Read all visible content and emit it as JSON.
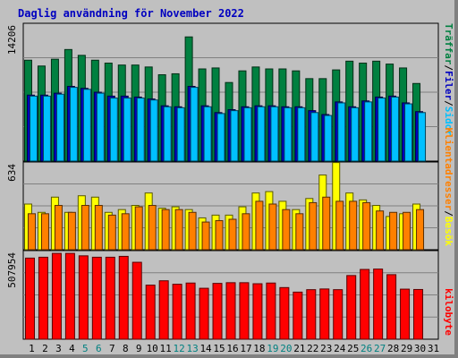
{
  "title": "Daglig användning för November 2022",
  "chart_data": [
    {
      "type": "bar",
      "panel": "top",
      "ymax_label": "14206",
      "ylim": [
        0,
        14206
      ],
      "legend": [
        {
          "text": "Träffar",
          "color": "#008040"
        },
        {
          "text": "/",
          "color": "#000000"
        },
        {
          "text": "Filer",
          "color": "#0000c0"
        },
        {
          "text": "/",
          "color": "#000000"
        },
        {
          "text": "Sidor",
          "color": "#00c0ff"
        }
      ],
      "series": [
        {
          "name": "Träffar",
          "color": "#008040",
          "values": [
            10400,
            9800,
            10500,
            11500,
            10900,
            10400,
            10100,
            9900,
            9900,
            9700,
            8900,
            9000,
            12800,
            9500,
            9600,
            8100,
            9300,
            9700,
            9500,
            9500,
            9300,
            8500,
            8500,
            9400,
            10300,
            10100,
            10300,
            10000,
            9600,
            8000
          ]
        },
        {
          "name": "Filer",
          "color": "#0000c0",
          "values": [
            6800,
            6800,
            7000,
            7700,
            7500,
            7100,
            6700,
            6700,
            6600,
            6400,
            5700,
            5600,
            7700,
            5700,
            5000,
            5300,
            5600,
            5700,
            5700,
            5600,
            5600,
            5200,
            4800,
            6100,
            5600,
            6200,
            6600,
            6700,
            6000,
            5100
          ]
        },
        {
          "name": "Sidor",
          "color": "#00c0ff",
          "values": [
            6700,
            6700,
            6900,
            7600,
            7400,
            7000,
            6500,
            6500,
            6500,
            6300,
            5600,
            5500,
            7600,
            5600,
            4900,
            5200,
            5500,
            5600,
            5600,
            5500,
            5500,
            5000,
            4700,
            6000,
            5500,
            6100,
            6500,
            6600,
            5900,
            5000
          ]
        }
      ]
    },
    {
      "type": "bar",
      "panel": "middle",
      "ymax_label": "634",
      "ylim": [
        0,
        634
      ],
      "legend": [
        {
          "text": "Klientadresser",
          "color": "#ff8000"
        },
        {
          "text": "/",
          "color": "#000000"
        },
        {
          "text": "Besök",
          "color": "#ffff00"
        }
      ],
      "series": [
        {
          "name": "Besök",
          "color": "#ffff00",
          "values": [
            330,
            270,
            380,
            270,
            390,
            380,
            270,
            290,
            320,
            410,
            300,
            310,
            290,
            230,
            250,
            250,
            310,
            410,
            420,
            350,
            290,
            370,
            540,
            630,
            410,
            360,
            320,
            240,
            260,
            330
          ]
        },
        {
          "name": "Klientadresser",
          "color": "#ff8000",
          "values": [
            260,
            260,
            320,
            270,
            320,
            320,
            250,
            260,
            310,
            320,
            290,
            290,
            270,
            200,
            210,
            220,
            260,
            350,
            330,
            290,
            260,
            340,
            380,
            350,
            350,
            340,
            280,
            270,
            270,
            290
          ]
        }
      ]
    },
    {
      "type": "bar",
      "panel": "bottom",
      "ymax_label": "507954",
      "ylim": [
        0,
        507954
      ],
      "legend": [
        {
          "text": "kilobyte",
          "color": "#ff0000"
        }
      ],
      "series": [
        {
          "name": "kilobyte",
          "color": "#ff0000",
          "values": [
            465000,
            470000,
            492000,
            492000,
            478000,
            470000,
            470000,
            475000,
            441000,
            310000,
            335000,
            315000,
            322000,
            292000,
            320000,
            324000,
            324000,
            318000,
            322000,
            296000,
            270000,
            284000,
            288000,
            284000,
            365000,
            400000,
            402000,
            370000,
            287000,
            285000
          ]
        }
      ]
    }
  ],
  "x_axis": {
    "ticks": [
      {
        "label": "1",
        "color": "#000000"
      },
      {
        "label": "2",
        "color": "#000000"
      },
      {
        "label": "3",
        "color": "#000000"
      },
      {
        "label": "4",
        "color": "#000000"
      },
      {
        "label": "5",
        "color": "#008080"
      },
      {
        "label": "6",
        "color": "#008080"
      },
      {
        "label": "7",
        "color": "#000000"
      },
      {
        "label": "8",
        "color": "#000000"
      },
      {
        "label": "9",
        "color": "#000000"
      },
      {
        "label": "10",
        "color": "#000000"
      },
      {
        "label": "11",
        "color": "#000000"
      },
      {
        "label": "12",
        "color": "#008080"
      },
      {
        "label": "13",
        "color": "#008080"
      },
      {
        "label": "14",
        "color": "#000000"
      },
      {
        "label": "15",
        "color": "#000000"
      },
      {
        "label": "16",
        "color": "#000000"
      },
      {
        "label": "17",
        "color": "#000000"
      },
      {
        "label": "18",
        "color": "#000000"
      },
      {
        "label": "19",
        "color": "#008080"
      },
      {
        "label": "20",
        "color": "#008080"
      },
      {
        "label": "21",
        "color": "#000000"
      },
      {
        "label": "22",
        "color": "#000000"
      },
      {
        "label": "23",
        "color": "#000000"
      },
      {
        "label": "24",
        "color": "#000000"
      },
      {
        "label": "25",
        "color": "#000000"
      },
      {
        "label": "26",
        "color": "#008080"
      },
      {
        "label": "27",
        "color": "#008080"
      },
      {
        "label": "28",
        "color": "#000000"
      },
      {
        "label": "29",
        "color": "#000000"
      },
      {
        "label": "30",
        "color": "#000000"
      },
      {
        "label": "31",
        "color": "#000000"
      }
    ]
  }
}
